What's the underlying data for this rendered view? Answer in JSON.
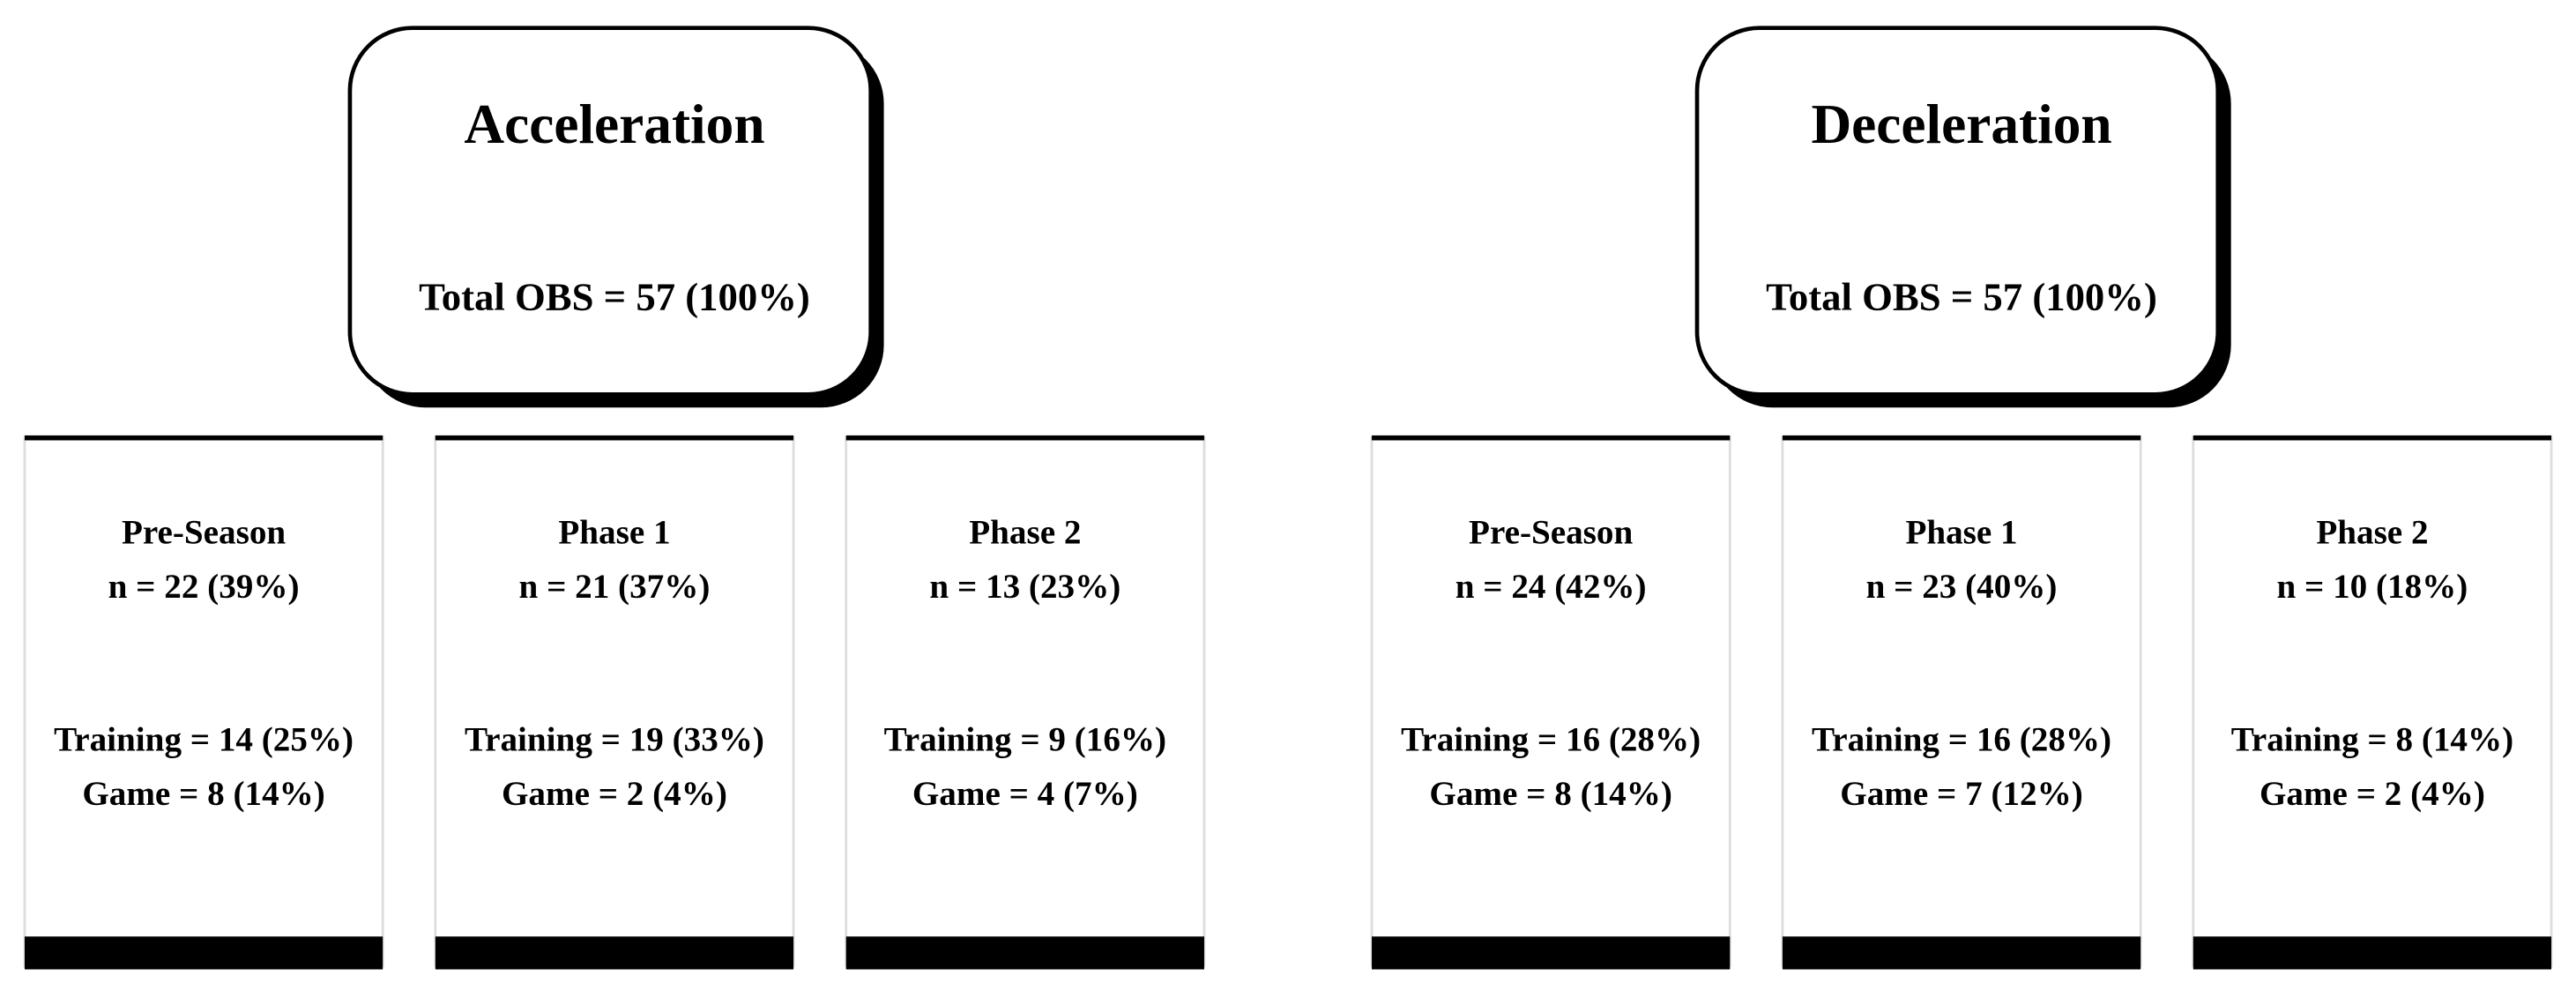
{
  "groups": [
    {
      "title": "Acceleration",
      "total": "Total OBS =  57 (100%)",
      "phases": [
        {
          "name": "Pre-Season",
          "n": "n = 22 (39%)",
          "training": "Training = 14 (25%)",
          "game": "Game = 8 (14%)"
        },
        {
          "name": "Phase 1",
          "n": "n = 21 (37%)",
          "training": "Training = 19 (33%)",
          "game": "Game = 2 (4%)"
        },
        {
          "name": "Phase 2",
          "n": "n = 13 (23%)",
          "training": "Training = 9 (16%)",
          "game": "Game = 4 (7%)"
        }
      ]
    },
    {
      "title": "Deceleration",
      "total": "Total OBS =  57 (100%)",
      "phases": [
        {
          "name": "Pre-Season",
          "n": "n = 24 (42%)",
          "training": "Training = 16 (28%)",
          "game": "Game = 8 (14%)"
        },
        {
          "name": "Phase 1",
          "n": "n = 23 (40%)",
          "training": "Training = 16 (28%)",
          "game": "Game = 7 (12%)"
        },
        {
          "name": "Phase 2",
          "n": "n = 10 (18%)",
          "training": "Training = 8 (14%)",
          "game": "Game = 2 (4%)"
        }
      ]
    }
  ]
}
